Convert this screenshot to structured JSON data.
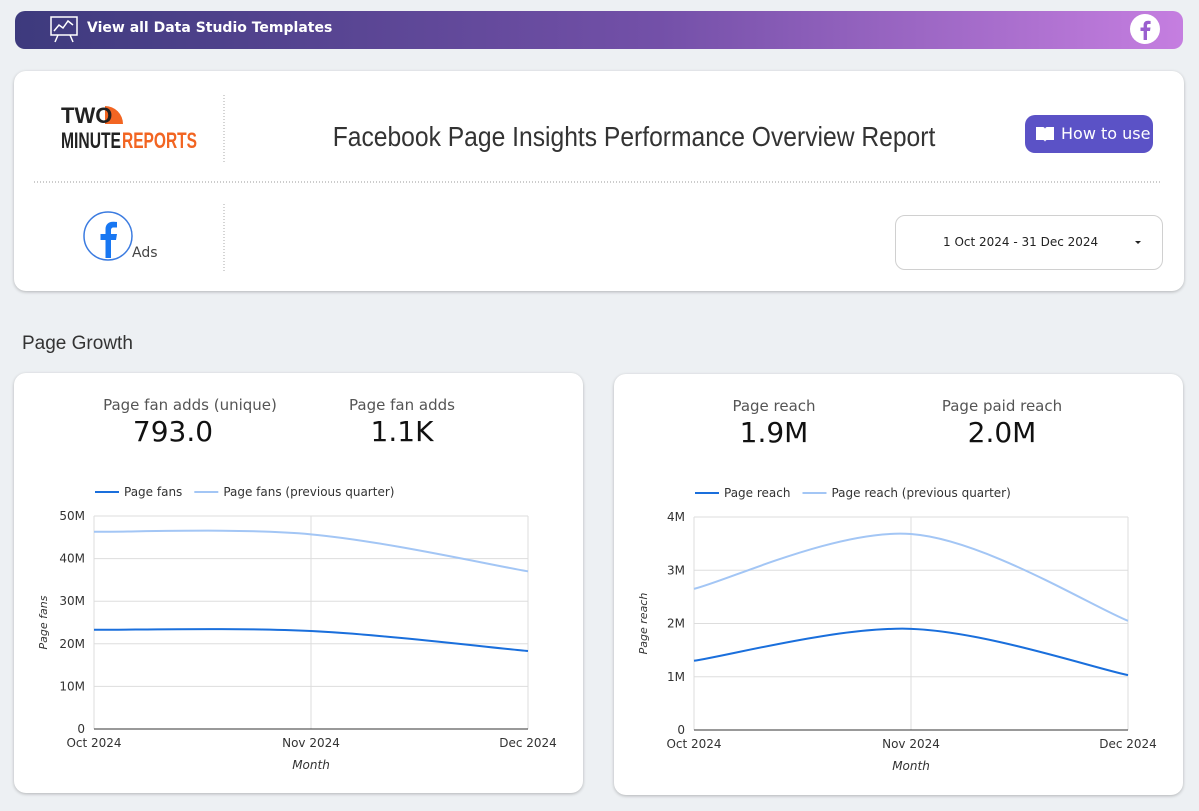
{
  "top_bar": {
    "text": "View all Data Studio Templates"
  },
  "header": {
    "logo": [
      "TWO",
      "MINUTE",
      "REPORTS"
    ],
    "title": "Facebook Page Insights Performance Overview Report",
    "button": "How to use",
    "source_label": "Ads",
    "date_range": "1 Oct 2024 - 31 Dec 2024"
  },
  "section_title": "Page Growth",
  "scorecards": [
    [
      {
        "label": "Page fan adds (unique)",
        "value": "793.0"
      },
      {
        "label": "Page fan adds",
        "value": "1.1K"
      }
    ],
    [
      {
        "label": "Page reach",
        "value": "1.9M"
      },
      {
        "label": "Page paid reach",
        "value": "2.0M"
      }
    ]
  ],
  "chart_data": [
    {
      "type": "line",
      "x_label": "Month",
      "y_label": "Page fans",
      "categories": [
        "Oct 2024",
        "Nov 2024",
        "Dec 2024"
      ],
      "series": [
        {
          "name": "Page fans",
          "color": "#1a6fdc",
          "values": [
            23300000,
            23000000,
            18300000
          ]
        },
        {
          "name": "Page fans (previous quarter)",
          "color": "#a3c6f5",
          "values": [
            46300000,
            45700000,
            37000000
          ]
        }
      ],
      "ylim": [
        0,
        50000000
      ],
      "yticks": [
        0,
        {
          "value": 10000000,
          "label": "10M"
        },
        {
          "value": 20000000,
          "label": "20M"
        },
        {
          "value": 30000000,
          "label": "30M"
        },
        {
          "value": 40000000,
          "label": "40M"
        },
        {
          "value": 50000000,
          "label": "50M"
        }
      ],
      "grid": true,
      "legend": "top"
    },
    {
      "type": "line",
      "x_label": "Month",
      "y_label": "Page reach",
      "categories": [
        "Oct 2024",
        "Nov 2024",
        "Dec 2024"
      ],
      "series": [
        {
          "name": "Page reach",
          "color": "#1a6fdc",
          "values": [
            1300000,
            1900000,
            1030000
          ]
        },
        {
          "name": "Page reach (previous quarter)",
          "color": "#a3c6f5",
          "values": [
            2650000,
            3680000,
            2050000
          ]
        }
      ],
      "ylim": [
        0,
        4000000
      ],
      "yticks": [
        0,
        {
          "value": 1000000,
          "label": "1M"
        },
        {
          "value": 2000000,
          "label": "2M"
        },
        {
          "value": 3000000,
          "label": "3M"
        },
        {
          "value": 4000000,
          "label": "4M"
        }
      ],
      "grid": true,
      "legend": "top"
    }
  ]
}
